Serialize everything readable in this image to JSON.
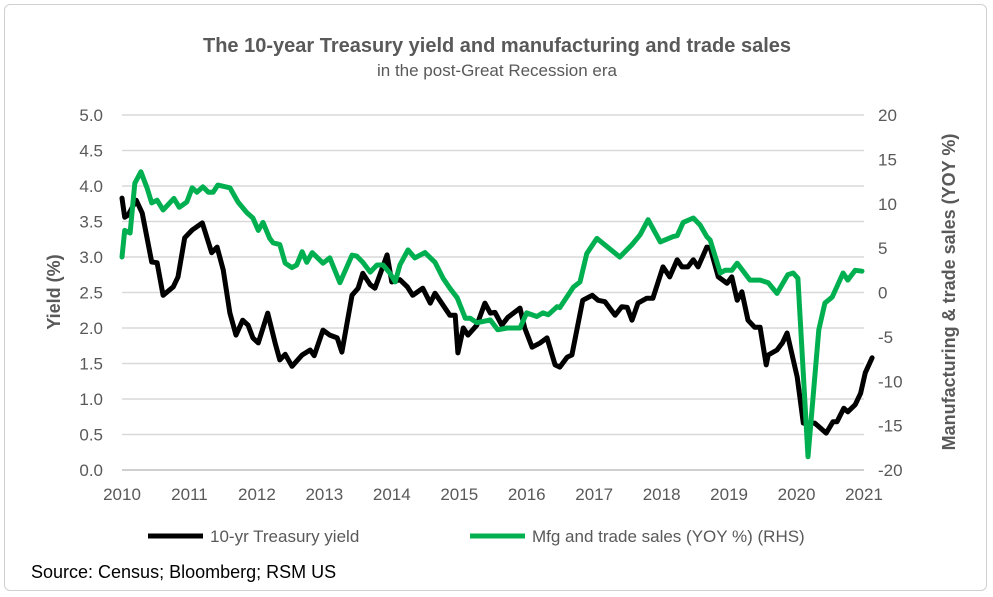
{
  "chart_data": {
    "type": "line",
    "title": "The 10-year Treasury yield and manufacturing and trade sales",
    "subtitle": "in the post-Great Recession era",
    "ylabel": "Yield (%)",
    "ylabel_right": "Manufacturing & trade sales (YOY %)",
    "xlim": [
      2010,
      2021
    ],
    "ylim": [
      0,
      5
    ],
    "ylim_right": [
      -20,
      20
    ],
    "x_ticks": [
      "2010",
      "2011",
      "2012",
      "2013",
      "2014",
      "2015",
      "2016",
      "2017",
      "2018",
      "2019",
      "2020",
      "2021"
    ],
    "y_ticks": [
      "0.0",
      "0.5",
      "1.0",
      "1.5",
      "2.0",
      "2.5",
      "3.0",
      "3.5",
      "4.0",
      "4.5",
      "5.0"
    ],
    "y_ticks_right": [
      "-20",
      "-15",
      "-10",
      "-5",
      "0",
      "5",
      "10",
      "15",
      "20"
    ],
    "grid": "horizontal",
    "legend_position": "bottom",
    "source": "Source: Census; Bloomberg; RSM US",
    "series": [
      {
        "name": "10-yr Treasury yield",
        "axis": "left",
        "color": "#000000",
        "points": [
          [
            2010.0,
            3.83
          ],
          [
            2010.04,
            3.56
          ],
          [
            2010.09,
            3.59
          ],
          [
            2010.21,
            3.8
          ],
          [
            2010.3,
            3.62
          ],
          [
            2010.44,
            2.93
          ],
          [
            2010.52,
            2.92
          ],
          [
            2010.61,
            2.46
          ],
          [
            2010.76,
            2.58
          ],
          [
            2010.83,
            2.72
          ],
          [
            2010.93,
            3.27
          ],
          [
            2011.04,
            3.38
          ],
          [
            2011.19,
            3.48
          ],
          [
            2011.33,
            3.06
          ],
          [
            2011.41,
            3.14
          ],
          [
            2011.5,
            2.82
          ],
          [
            2011.6,
            2.21
          ],
          [
            2011.69,
            1.9
          ],
          [
            2011.79,
            2.11
          ],
          [
            2011.87,
            2.04
          ],
          [
            2011.94,
            1.86
          ],
          [
            2012.02,
            1.79
          ],
          [
            2012.16,
            2.21
          ],
          [
            2012.27,
            1.79
          ],
          [
            2012.34,
            1.55
          ],
          [
            2012.42,
            1.63
          ],
          [
            2012.52,
            1.46
          ],
          [
            2012.67,
            1.62
          ],
          [
            2012.79,
            1.69
          ],
          [
            2012.85,
            1.61
          ],
          [
            2012.98,
            1.97
          ],
          [
            2013.08,
            1.9
          ],
          [
            2013.19,
            1.86
          ],
          [
            2013.26,
            1.66
          ],
          [
            2013.41,
            2.46
          ],
          [
            2013.5,
            2.56
          ],
          [
            2013.57,
            2.77
          ],
          [
            2013.68,
            2.61
          ],
          [
            2013.75,
            2.56
          ],
          [
            2013.93,
            3.03
          ],
          [
            2014.0,
            2.65
          ],
          [
            2014.12,
            2.68
          ],
          [
            2014.23,
            2.58
          ],
          [
            2014.31,
            2.46
          ],
          [
            2014.46,
            2.56
          ],
          [
            2014.57,
            2.35
          ],
          [
            2014.64,
            2.49
          ],
          [
            2014.86,
            2.18
          ],
          [
            2014.94,
            2.18
          ],
          [
            2014.98,
            1.65
          ],
          [
            2015.06,
            2.0
          ],
          [
            2015.13,
            1.9
          ],
          [
            2015.26,
            2.04
          ],
          [
            2015.38,
            2.35
          ],
          [
            2015.46,
            2.21
          ],
          [
            2015.53,
            2.22
          ],
          [
            2015.63,
            2.04
          ],
          [
            2015.72,
            2.15
          ],
          [
            2015.9,
            2.28
          ],
          [
            2015.97,
            2.0
          ],
          [
            2016.08,
            1.73
          ],
          [
            2016.2,
            1.79
          ],
          [
            2016.3,
            1.86
          ],
          [
            2016.42,
            1.48
          ],
          [
            2016.49,
            1.45
          ],
          [
            2016.6,
            1.59
          ],
          [
            2016.67,
            1.62
          ],
          [
            2016.83,
            2.39
          ],
          [
            2016.97,
            2.46
          ],
          [
            2017.06,
            2.39
          ],
          [
            2017.16,
            2.37
          ],
          [
            2017.31,
            2.18
          ],
          [
            2017.41,
            2.3
          ],
          [
            2017.49,
            2.29
          ],
          [
            2017.56,
            2.11
          ],
          [
            2017.65,
            2.35
          ],
          [
            2017.78,
            2.42
          ],
          [
            2017.87,
            2.42
          ],
          [
            2018.02,
            2.86
          ],
          [
            2018.12,
            2.72
          ],
          [
            2018.23,
            2.96
          ],
          [
            2018.3,
            2.86
          ],
          [
            2018.39,
            2.86
          ],
          [
            2018.47,
            2.96
          ],
          [
            2018.54,
            2.86
          ],
          [
            2018.67,
            3.14
          ],
          [
            2018.72,
            3.13
          ],
          [
            2018.84,
            2.72
          ],
          [
            2018.97,
            2.63
          ],
          [
            2019.04,
            2.72
          ],
          [
            2019.12,
            2.39
          ],
          [
            2019.19,
            2.51
          ],
          [
            2019.28,
            2.11
          ],
          [
            2019.38,
            2.01
          ],
          [
            2019.46,
            2.01
          ],
          [
            2019.55,
            1.48
          ],
          [
            2019.58,
            1.62
          ],
          [
            2019.71,
            1.69
          ],
          [
            2019.79,
            1.79
          ],
          [
            2019.86,
            1.93
          ],
          [
            2020.01,
            1.31
          ],
          [
            2020.1,
            0.66
          ],
          [
            2020.27,
            0.66
          ],
          [
            2020.44,
            0.52
          ],
          [
            2020.54,
            0.68
          ],
          [
            2020.6,
            0.68
          ],
          [
            2020.7,
            0.87
          ],
          [
            2020.76,
            0.82
          ],
          [
            2020.87,
            0.92
          ],
          [
            2020.95,
            1.08
          ],
          [
            2021.02,
            1.37
          ],
          [
            2021.12,
            1.58
          ]
        ]
      },
      {
        "name": "Mfg and trade sales (YOY %) (RHS)",
        "axis": "right",
        "color": "#00B050",
        "points": [
          [
            2010.0,
            4.0
          ],
          [
            2010.04,
            7.0
          ],
          [
            2010.12,
            6.7
          ],
          [
            2010.19,
            12.3
          ],
          [
            2010.28,
            13.6
          ],
          [
            2010.37,
            11.8
          ],
          [
            2010.44,
            10.1
          ],
          [
            2010.52,
            10.4
          ],
          [
            2010.61,
            9.3
          ],
          [
            2010.77,
            10.6
          ],
          [
            2010.85,
            9.6
          ],
          [
            2010.96,
            10.2
          ],
          [
            2011.04,
            11.8
          ],
          [
            2011.11,
            11.3
          ],
          [
            2011.2,
            11.9
          ],
          [
            2011.28,
            11.3
          ],
          [
            2011.35,
            11.3
          ],
          [
            2011.42,
            12.1
          ],
          [
            2011.6,
            11.8
          ],
          [
            2011.72,
            10.2
          ],
          [
            2011.85,
            9.0
          ],
          [
            2011.94,
            8.4
          ],
          [
            2012.02,
            7.0
          ],
          [
            2012.09,
            7.9
          ],
          [
            2012.19,
            6.1
          ],
          [
            2012.24,
            5.6
          ],
          [
            2012.34,
            5.4
          ],
          [
            2012.42,
            3.3
          ],
          [
            2012.52,
            2.8
          ],
          [
            2012.59,
            3.1
          ],
          [
            2012.67,
            4.6
          ],
          [
            2012.74,
            3.4
          ],
          [
            2012.82,
            4.5
          ],
          [
            2012.98,
            3.3
          ],
          [
            2013.08,
            3.9
          ],
          [
            2013.23,
            1.1
          ],
          [
            2013.41,
            4.2
          ],
          [
            2013.48,
            4.1
          ],
          [
            2013.57,
            3.4
          ],
          [
            2013.68,
            2.3
          ],
          [
            2013.78,
            3.1
          ],
          [
            2013.87,
            3.1
          ],
          [
            2013.97,
            2.2
          ],
          [
            2014.05,
            1.2
          ],
          [
            2014.12,
            3.1
          ],
          [
            2014.24,
            4.8
          ],
          [
            2014.34,
            3.9
          ],
          [
            2014.49,
            4.5
          ],
          [
            2014.64,
            3.4
          ],
          [
            2014.76,
            1.6
          ],
          [
            2014.86,
            0.5
          ],
          [
            2014.97,
            -0.6
          ],
          [
            2015.09,
            -2.9
          ],
          [
            2015.16,
            -2.9
          ],
          [
            2015.26,
            -3.4
          ],
          [
            2015.46,
            -3.1
          ],
          [
            2015.57,
            -4.2
          ],
          [
            2015.71,
            -4.0
          ],
          [
            2015.9,
            -4.0
          ],
          [
            2016.0,
            -2.3
          ],
          [
            2016.15,
            -2.7
          ],
          [
            2016.24,
            -2.3
          ],
          [
            2016.32,
            -2.5
          ],
          [
            2016.45,
            -1.6
          ],
          [
            2016.49,
            -1.7
          ],
          [
            2016.69,
            0.6
          ],
          [
            2016.79,
            1.2
          ],
          [
            2016.89,
            4.4
          ],
          [
            2017.04,
            6.1
          ],
          [
            2017.38,
            4.0
          ],
          [
            2017.56,
            5.4
          ],
          [
            2017.68,
            6.5
          ],
          [
            2017.8,
            8.2
          ],
          [
            2017.98,
            5.7
          ],
          [
            2018.17,
            6.3
          ],
          [
            2018.23,
            6.4
          ],
          [
            2018.32,
            7.9
          ],
          [
            2018.47,
            8.4
          ],
          [
            2018.57,
            7.6
          ],
          [
            2018.67,
            6.3
          ],
          [
            2018.72,
            5.9
          ],
          [
            2018.87,
            2.2
          ],
          [
            2018.94,
            2.5
          ],
          [
            2019.04,
            2.5
          ],
          [
            2019.12,
            3.3
          ],
          [
            2019.31,
            1.4
          ],
          [
            2019.46,
            1.4
          ],
          [
            2019.58,
            1.1
          ],
          [
            2019.71,
            -0.1
          ],
          [
            2019.87,
            2.0
          ],
          [
            2019.95,
            2.2
          ],
          [
            2020.02,
            1.6
          ],
          [
            2020.17,
            -18.5
          ],
          [
            2020.33,
            -4.2
          ],
          [
            2020.42,
            -1.2
          ],
          [
            2020.53,
            -0.5
          ],
          [
            2020.69,
            2.2
          ],
          [
            2020.76,
            1.4
          ],
          [
            2020.87,
            2.5
          ],
          [
            2020.97,
            2.4
          ]
        ]
      }
    ]
  }
}
